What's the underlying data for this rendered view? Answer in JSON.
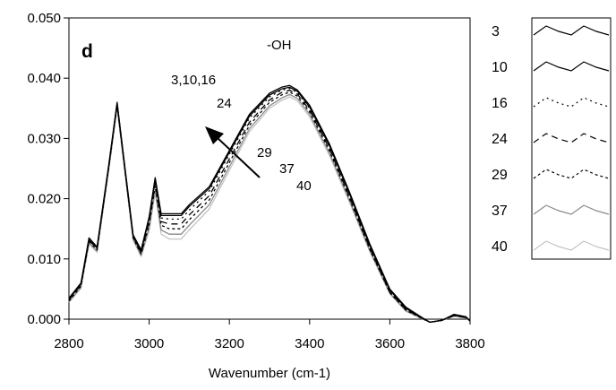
{
  "chart_data": {
    "type": "line",
    "panel_label": "d",
    "title": "",
    "xlabel": "Wavenumber (cm-1)",
    "ylabel": "",
    "xlim": [
      2800,
      3800
    ],
    "ylim": [
      0.0,
      0.05
    ],
    "x_ticks": [
      2800,
      3000,
      3200,
      3400,
      3600,
      3800
    ],
    "y_ticks": [
      "0.000",
      "0.010",
      "0.020",
      "0.030",
      "0.040",
      "0.050"
    ],
    "annotations": {
      "group_label": "-OH",
      "label_a": "3,10,16",
      "label_b": "24",
      "label_c": "29",
      "label_d": "37",
      "label_e": "40"
    },
    "legend_position": "right",
    "x": [
      2800,
      2830,
      2850,
      2870,
      2900,
      2920,
      2940,
      2960,
      2980,
      3000,
      3015,
      3030,
      3050,
      3080,
      3100,
      3150,
      3200,
      3250,
      3300,
      3330,
      3350,
      3370,
      3400,
      3450,
      3500,
      3550,
      3600,
      3640,
      3680,
      3700,
      3730,
      3760,
      3790,
      3800
    ],
    "series": [
      {
        "name": "3",
        "color": "#000000",
        "dash": "solid",
        "values": [
          0.0035,
          0.006,
          0.0135,
          0.012,
          0.026,
          0.036,
          0.025,
          0.014,
          0.0115,
          0.017,
          0.0235,
          0.0175,
          0.0175,
          0.0175,
          0.019,
          0.022,
          0.028,
          0.034,
          0.0375,
          0.0385,
          0.0388,
          0.038,
          0.0355,
          0.029,
          0.021,
          0.0125,
          0.005,
          0.002,
          0.0003,
          -0.0005,
          -0.0002,
          0.0008,
          0.0004,
          -0.0003
        ]
      },
      {
        "name": "10",
        "color": "#000000",
        "dash": "solid",
        "values": [
          0.0033,
          0.0058,
          0.0132,
          0.0118,
          0.0258,
          0.0358,
          0.0248,
          0.0138,
          0.0112,
          0.0168,
          0.0232,
          0.0172,
          0.0172,
          0.0172,
          0.0187,
          0.0217,
          0.0277,
          0.0337,
          0.0372,
          0.0382,
          0.0385,
          0.0378,
          0.0352,
          0.0287,
          0.0207,
          0.0122,
          0.0048,
          0.0018,
          0.0002,
          -0.0005,
          -0.0002,
          0.0007,
          0.0003,
          -0.0003
        ]
      },
      {
        "name": "16",
        "color": "#000000",
        "dash": "2,4",
        "values": [
          0.0034,
          0.0059,
          0.0133,
          0.0119,
          0.0259,
          0.0359,
          0.0249,
          0.0139,
          0.0113,
          0.0167,
          0.0231,
          0.0168,
          0.0166,
          0.0166,
          0.0181,
          0.0213,
          0.0274,
          0.0334,
          0.0369,
          0.038,
          0.0383,
          0.0376,
          0.035,
          0.0285,
          0.0205,
          0.012,
          0.0046,
          0.0017,
          0.0002,
          -0.0005,
          -0.0002,
          0.0007,
          0.0003,
          -0.0003
        ]
      },
      {
        "name": "24",
        "color": "#000000",
        "dash": "7,5",
        "values": [
          0.0032,
          0.0057,
          0.0131,
          0.0117,
          0.0257,
          0.0357,
          0.0247,
          0.0137,
          0.011,
          0.0162,
          0.0226,
          0.0162,
          0.0158,
          0.0158,
          0.0173,
          0.0205,
          0.0266,
          0.0327,
          0.0364,
          0.0376,
          0.038,
          0.0373,
          0.0347,
          0.0282,
          0.0202,
          0.0118,
          0.0045,
          0.0016,
          0.0002,
          -0.0005,
          -0.0002,
          0.0006,
          0.0003,
          -0.0003
        ]
      },
      {
        "name": "29",
        "color": "#000000",
        "dash": "3,3",
        "values": [
          0.003,
          0.0055,
          0.0129,
          0.0115,
          0.0255,
          0.0355,
          0.0245,
          0.0135,
          0.0108,
          0.0157,
          0.0221,
          0.0156,
          0.015,
          0.015,
          0.0165,
          0.0198,
          0.026,
          0.0322,
          0.036,
          0.0372,
          0.0377,
          0.037,
          0.0344,
          0.0279,
          0.0199,
          0.0116,
          0.0044,
          0.0015,
          0.0001,
          -0.0005,
          -0.0002,
          0.0006,
          0.0003,
          -0.0003
        ]
      },
      {
        "name": "37",
        "color": "#8a8a8a",
        "dash": "solid",
        "values": [
          0.0029,
          0.0053,
          0.0127,
          0.0113,
          0.0253,
          0.0353,
          0.0243,
          0.0133,
          0.0106,
          0.0152,
          0.0215,
          0.0148,
          0.0141,
          0.0141,
          0.0156,
          0.019,
          0.0253,
          0.0316,
          0.0354,
          0.0367,
          0.0373,
          0.0366,
          0.034,
          0.0275,
          0.0196,
          0.0114,
          0.0043,
          0.0014,
          0.0001,
          -0.0005,
          -0.0002,
          0.0005,
          0.0002,
          -0.0003
        ]
      },
      {
        "name": "40",
        "color": "#c4c4c4",
        "dash": "solid",
        "values": [
          0.0028,
          0.0051,
          0.0125,
          0.0111,
          0.0251,
          0.0351,
          0.0241,
          0.0131,
          0.0104,
          0.0147,
          0.021,
          0.0141,
          0.0133,
          0.0133,
          0.0148,
          0.0183,
          0.0247,
          0.0311,
          0.035,
          0.0363,
          0.0369,
          0.0362,
          0.0336,
          0.0271,
          0.0193,
          0.0112,
          0.0042,
          0.0013,
          0.0001,
          -0.0005,
          -0.0002,
          0.0005,
          0.0002,
          -0.0003
        ]
      }
    ]
  }
}
